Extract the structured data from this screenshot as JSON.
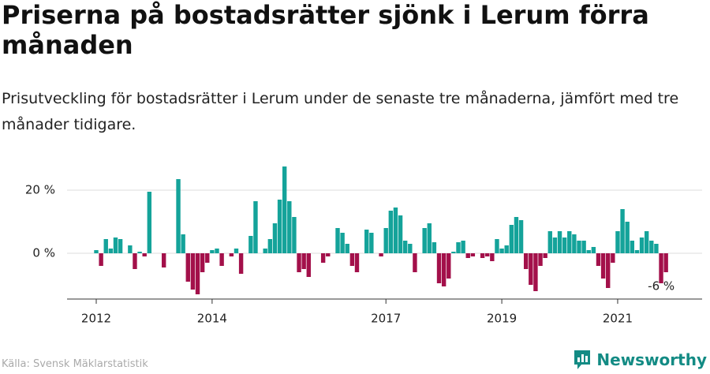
{
  "chart_data": {
    "type": "bar",
    "title": "Priserna på bostadsrätter sjönk i Lerum förra månaden",
    "subtitle": "Prisutveckling för bostadsrätter i Lerum under de senaste tre månaderna, jämfört med tre månader tidigare.",
    "source": "Källa: Svensk Mäklarstatistik",
    "brand": "Newsworthy",
    "annotation": "-6 %",
    "categories": [
      "2012",
      null,
      null,
      null,
      null,
      null,
      null,
      null,
      null,
      null,
      null,
      null,
      null,
      null,
      null,
      null,
      null,
      null,
      null,
      null,
      null,
      null,
      null,
      null,
      "2014",
      null,
      null,
      null,
      null,
      null,
      null,
      null,
      null,
      null,
      null,
      null,
      null,
      null,
      null,
      null,
      null,
      null,
      null,
      null,
      null,
      null,
      null,
      null,
      null,
      null,
      null,
      null,
      null,
      null,
      null,
      null,
      null,
      null,
      null,
      null,
      "2017",
      null,
      null,
      null,
      null,
      null,
      null,
      null,
      null,
      null,
      null,
      null,
      null,
      null,
      null,
      null,
      null,
      null,
      null,
      null,
      null,
      null,
      null,
      null,
      "2019",
      null,
      null,
      null,
      null,
      null,
      null,
      null,
      null,
      null,
      null,
      null,
      null,
      null,
      null,
      null,
      null,
      null,
      null,
      null,
      null,
      null,
      null,
      null,
      "2021",
      null,
      null,
      null,
      null,
      null,
      null,
      null,
      null,
      null,
      null
    ],
    "values": [
      1,
      -4,
      4.5,
      1.5,
      5,
      4.5,
      0,
      2.5,
      -5,
      0.5,
      -1,
      19.5,
      0,
      0,
      -4.5,
      0,
      0,
      23.5,
      6,
      -9,
      -11.5,
      -13,
      -6,
      -3,
      1,
      1.5,
      -4,
      0,
      -1,
      1.5,
      -6.5,
      0,
      5.5,
      16.5,
      0,
      1.5,
      4.5,
      9.5,
      17,
      27.5,
      16.5,
      11.5,
      -6,
      -5,
      -7.5,
      0,
      0,
      -3,
      -1,
      0,
      8,
      6.5,
      3,
      -4,
      -6,
      0,
      7.5,
      6.5,
      0,
      -1,
      8,
      13.5,
      14.5,
      12,
      4,
      3,
      -6,
      0,
      8,
      9.5,
      3.5,
      -9.5,
      -10.5,
      -8,
      0.5,
      3.5,
      4,
      -1.5,
      -1,
      0,
      -1.5,
      -1,
      -2.5,
      4.5,
      1.5,
      2.5,
      9,
      11.5,
      10.5,
      -5,
      -10,
      -12,
      -4,
      -1.5,
      7,
      5,
      7,
      5,
      7,
      6,
      4,
      4,
      1,
      2,
      -4,
      -8,
      -11,
      -3,
      7,
      14,
      10,
      4,
      1,
      5,
      7,
      4,
      3,
      -9.5,
      -6
    ],
    "positive_color": "#14a39a",
    "negative_color": "#a3104a",
    "ylim": [
      -14.5,
      28
    ],
    "yticks": [
      {
        "value": 0,
        "label": "0 %"
      },
      {
        "value": 20,
        "label": "20 %"
      }
    ],
    "grid": true
  }
}
